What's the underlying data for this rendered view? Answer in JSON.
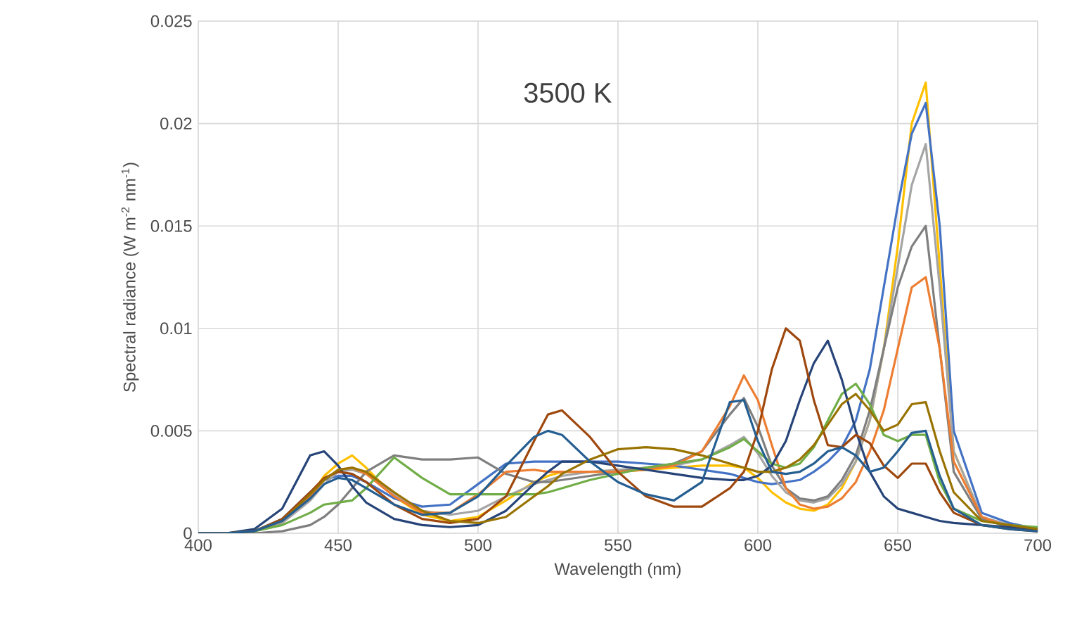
{
  "chart_data": {
    "type": "line",
    "title": "3500 K",
    "xlabel": "Wavelength (nm)",
    "ylabel": "Spectral radiance (W m$^{-2}$ nm$^{-1}$)",
    "xlim": [
      400,
      700
    ],
    "xticks": [
      400,
      450,
      500,
      550,
      600,
      650,
      700
    ],
    "ylim": [
      0,
      0.025
    ],
    "yticks": [
      0,
      0.005,
      0.01,
      0.015,
      0.02,
      0.025
    ],
    "grid": true,
    "line_style": "solid",
    "x": [
      400,
      410,
      420,
      430,
      440,
      445,
      450,
      455,
      460,
      470,
      480,
      490,
      500,
      510,
      520,
      525,
      530,
      540,
      550,
      560,
      570,
      580,
      590,
      595,
      600,
      605,
      610,
      615,
      620,
      625,
      630,
      635,
      640,
      645,
      650,
      655,
      660,
      665,
      670,
      680,
      690,
      700
    ],
    "series": [
      {
        "color": "#ffc000",
        "values": [
          null,
          null,
          null,
          null,
          0.0018,
          0.0028,
          0.0034,
          0.0038,
          0.0032,
          0.0018,
          0.0009,
          0.0006,
          0.0008,
          0.0016,
          0.0025,
          0.0028,
          0.003,
          0.003,
          0.003,
          0.0031,
          0.0032,
          0.0033,
          0.0033,
          0.0032,
          0.0027,
          0.002,
          0.0015,
          0.0012,
          0.0011,
          0.0014,
          0.0022,
          0.0035,
          0.0055,
          0.009,
          0.014,
          0.02,
          0.022,
          0.013,
          0.004,
          0.0008,
          null,
          null
        ]
      },
      {
        "color": "#4472c4",
        "values": [
          0,
          0,
          0.0001,
          0.0007,
          0.002,
          0.0026,
          0.0028,
          0.0028,
          0.0025,
          0.0017,
          0.0013,
          0.0014,
          0.0024,
          0.0034,
          0.0035,
          0.0035,
          0.0035,
          0.0035,
          0.0035,
          0.0034,
          0.0033,
          0.0031,
          0.0029,
          0.0027,
          0.0025,
          0.0024,
          0.0025,
          0.0026,
          0.003,
          0.0035,
          0.0042,
          0.0055,
          0.008,
          0.012,
          0.016,
          0.0195,
          0.021,
          0.015,
          0.005,
          0.001,
          0.0005,
          0.0002
        ]
      },
      {
        "color": "#a5a5a5",
        "values": [
          0,
          0,
          0.0001,
          0.0005,
          0.0016,
          0.0024,
          0.003,
          0.0031,
          0.0029,
          0.0019,
          0.0011,
          0.0009,
          0.0011,
          0.0018,
          0.0024,
          0.0026,
          0.0028,
          0.003,
          0.0031,
          0.0032,
          0.0033,
          0.0036,
          0.0043,
          0.0047,
          0.0039,
          0.0028,
          0.002,
          0.0016,
          0.0015,
          0.0017,
          0.0024,
          0.0035,
          0.0055,
          0.009,
          0.013,
          0.017,
          0.019,
          0.012,
          0.004,
          0.0008,
          0.0004,
          0.0002
        ]
      },
      {
        "color": "#7f7f7f",
        "values": [
          0,
          0,
          0,
          0.0001,
          0.0004,
          0.0008,
          0.0014,
          0.0022,
          0.003,
          0.0038,
          0.0036,
          0.0036,
          0.0037,
          0.0029,
          0.0025,
          0.0025,
          0.0026,
          0.0028,
          0.003,
          0.0032,
          0.0034,
          0.004,
          0.0058,
          0.0066,
          0.0052,
          0.0033,
          0.0022,
          0.0017,
          0.0016,
          0.0018,
          0.0026,
          0.0038,
          0.006,
          0.009,
          0.012,
          0.014,
          0.015,
          0.009,
          0.003,
          0.0007,
          0.0003,
          0.0002
        ]
      },
      {
        "color": "#ed7d31",
        "values": [
          null,
          null,
          null,
          0.0006,
          0.0018,
          0.0026,
          0.0031,
          0.0032,
          0.0029,
          0.0018,
          0.001,
          0.001,
          0.0019,
          0.003,
          0.0031,
          0.003,
          0.003,
          0.003,
          0.003,
          0.0031,
          0.0033,
          0.004,
          0.0062,
          0.0077,
          0.0065,
          0.0043,
          0.0022,
          0.0014,
          0.0012,
          0.0013,
          0.0017,
          0.0025,
          0.004,
          0.006,
          0.009,
          0.012,
          0.0125,
          0.009,
          0.0035,
          0.0008,
          0.0003,
          0.0001
        ]
      },
      {
        "color": "#70ad47",
        "values": [
          0,
          0,
          0.0001,
          0.0004,
          0.001,
          0.0014,
          0.0015,
          0.0016,
          0.0022,
          0.0037,
          0.0027,
          0.0019,
          0.0019,
          0.0019,
          0.0019,
          0.002,
          0.0022,
          0.0026,
          0.0029,
          0.0032,
          0.0034,
          0.0036,
          0.0042,
          0.0046,
          0.004,
          0.0034,
          0.0032,
          0.0034,
          0.0042,
          0.0055,
          0.0068,
          0.0073,
          0.0063,
          0.0048,
          0.0045,
          0.0048,
          0.0048,
          0.0025,
          0.0012,
          0.0006,
          0.0004,
          0.0003
        ]
      },
      {
        "color": "#264478",
        "values": [
          0,
          0,
          0.0002,
          0.0012,
          0.0038,
          0.004,
          0.0033,
          0.0023,
          0.0015,
          0.0007,
          0.0004,
          0.0003,
          0.0004,
          0.0011,
          0.0024,
          0.003,
          0.0035,
          0.0035,
          0.0033,
          0.0031,
          0.0029,
          0.0027,
          0.0026,
          0.0026,
          0.0028,
          0.0033,
          0.0045,
          0.0065,
          0.0083,
          0.0094,
          0.0075,
          0.005,
          0.003,
          0.0018,
          0.0012,
          0.001,
          0.0008,
          0.0006,
          0.0005,
          0.0004,
          0.0003,
          0.0002
        ]
      },
      {
        "color": "#9e480e",
        "values": [
          0,
          0,
          0.0001,
          0.0007,
          0.002,
          0.0027,
          0.003,
          0.0029,
          0.0025,
          0.0014,
          0.0007,
          0.0005,
          0.0007,
          0.0018,
          0.0045,
          0.0058,
          0.006,
          0.0047,
          0.003,
          0.0018,
          0.0013,
          0.0013,
          0.0022,
          0.003,
          0.005,
          0.008,
          0.01,
          0.0094,
          0.0065,
          0.0043,
          0.0042,
          0.0048,
          0.0044,
          0.0033,
          0.0027,
          0.0034,
          0.0034,
          0.002,
          0.001,
          0.0004,
          0.0002,
          0.0001
        ]
      },
      {
        "color": "#997300",
        "values": [
          0,
          0,
          0.0001,
          0.0006,
          0.0019,
          0.0026,
          0.0031,
          0.0032,
          0.003,
          0.002,
          0.0011,
          0.0006,
          0.0005,
          0.0008,
          0.0018,
          0.0023,
          0.0029,
          0.0036,
          0.0041,
          0.0042,
          0.0041,
          0.0038,
          0.0034,
          0.0032,
          0.003,
          0.003,
          0.0032,
          0.0036,
          0.0043,
          0.0053,
          0.0063,
          0.0068,
          0.006,
          0.005,
          0.0053,
          0.0063,
          0.0064,
          0.004,
          0.002,
          0.0006,
          0.0004,
          0.0002
        ]
      },
      {
        "color": "#255e91",
        "values": [
          0,
          0,
          0.0001,
          0.0006,
          0.0017,
          0.0024,
          0.0027,
          0.0026,
          0.0022,
          0.0014,
          0.0009,
          0.001,
          0.0018,
          0.0033,
          0.0047,
          0.005,
          0.0048,
          0.0035,
          0.0025,
          0.0019,
          0.0016,
          0.0025,
          0.0064,
          0.0065,
          0.0045,
          0.003,
          0.0029,
          0.003,
          0.0034,
          0.004,
          0.0042,
          0.0038,
          0.003,
          0.0032,
          0.004,
          0.0049,
          0.005,
          0.0028,
          0.0012,
          0.0004,
          0.0002,
          0.0001
        ]
      }
    ]
  }
}
